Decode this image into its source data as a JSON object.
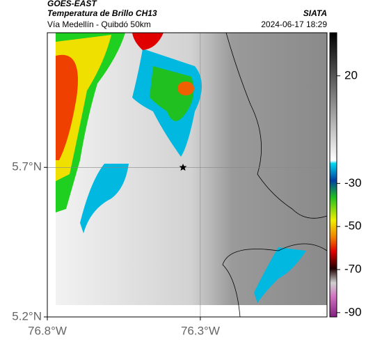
{
  "header": {
    "satellite": "GOES-EAST",
    "product": "Temperatura de Brillo CH13",
    "route": "Vía Medellín - Quibdó 50km",
    "source": "SIATA",
    "timestamp": "2024-06-17 18:29"
  },
  "map": {
    "latlim": [
      5.2,
      6.15
    ],
    "lonlim": [
      -76.8,
      -75.886
    ],
    "latticks": [
      {
        "value": 5.7,
        "label": "5.7°N"
      },
      {
        "value": 5.2,
        "label": "5.2°N"
      }
    ],
    "lonticks": [
      {
        "value": -76.8,
        "label": "76.8°W"
      },
      {
        "value": -76.3,
        "label": "76.3°W"
      }
    ]
  },
  "colorbar": {
    "lim": [
      40,
      -92
    ],
    "ticks": [
      20,
      -30,
      -50,
      -70,
      -90
    ]
  }
}
